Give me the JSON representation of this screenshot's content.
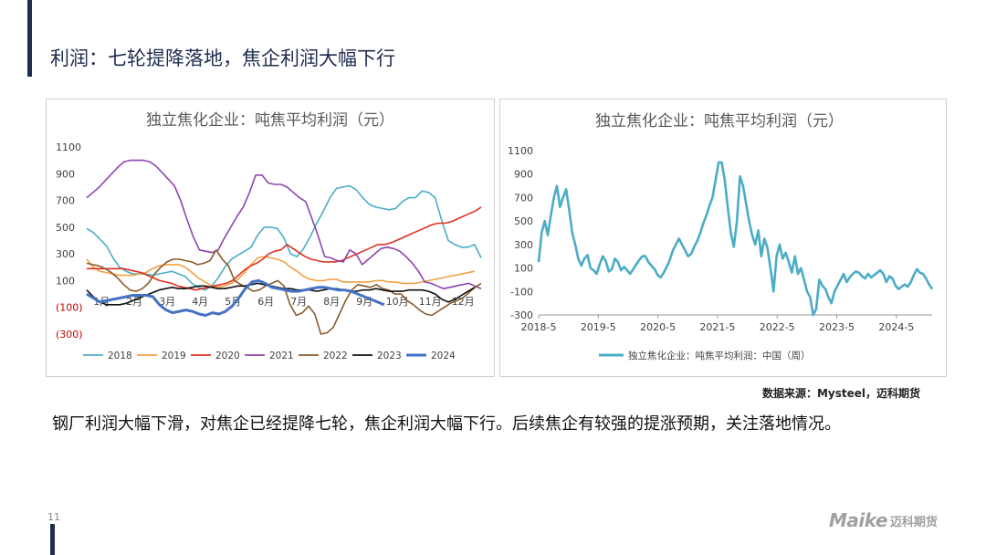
{
  "page": {
    "title": "利润：七轮提降落地，焦企利润大幅下行",
    "source": "数据来源：Mysteel，迈科期货",
    "summary": "钢厂利润大幅下滑，对焦企已经提降七轮，焦企利润大幅下行。后续焦企有较强的提涨预期，关注落地情况。",
    "page_number": "11",
    "logo_en": "Maike",
    "logo_cn": "迈科期货"
  },
  "colors": {
    "accent": "#1f2d4e",
    "s2018": "#4bacc6",
    "s2019": "#f0a040",
    "s2020": "#e03020",
    "s2021": "#8e44ad",
    "s2022": "#8b5a2b",
    "s2023": "#111111",
    "s2024": "#4472c4",
    "right_line": "#4bacc6"
  },
  "chart_data": [
    {
      "type": "line",
      "title": "独立焦化企业：吨焦平均利润（元）",
      "x_labels": [
        "1月",
        "2月",
        "3月",
        "4月",
        "5月",
        "6月",
        "7月",
        "8月",
        "9月",
        "10月",
        "11月",
        "12月"
      ],
      "y_ticks": [
        "1100",
        "900",
        "700",
        "500",
        "300",
        "100",
        "(100)",
        "(300)"
      ],
      "ylim": [
        -300,
        1100
      ],
      "legend_position": "bottom",
      "series": [
        {
          "name": "2018",
          "values": [
            490,
            460,
            410,
            360,
            270,
            200,
            170,
            150,
            150,
            150,
            140,
            150,
            160,
            170,
            150,
            130,
            80,
            50,
            30,
            60,
            120,
            200,
            260,
            290,
            320,
            350,
            440,
            500,
            500,
            490,
            420,
            300,
            280,
            340,
            430,
            530,
            620,
            720,
            790,
            800,
            810,
            780,
            720,
            670,
            650,
            640,
            630,
            640,
            690,
            720,
            720,
            770,
            760,
            720,
            550,
            400,
            370,
            350,
            350,
            370,
            270
          ]
        },
        {
          "name": "2019",
          "values": [
            260,
            200,
            170,
            160,
            150,
            140,
            140,
            140,
            150,
            160,
            190,
            210,
            220,
            220,
            220,
            200,
            160,
            120,
            90,
            60,
            50,
            60,
            80,
            110,
            160,
            220,
            270,
            280,
            270,
            260,
            240,
            200,
            170,
            130,
            110,
            100,
            100,
            110,
            110,
            90,
            90,
            90,
            90,
            90,
            100,
            100,
            90,
            90,
            80,
            80,
            80,
            90,
            100,
            110,
            120,
            130,
            140,
            150,
            160,
            170
          ]
        },
        {
          "name": "2020",
          "values": [
            190,
            190,
            190,
            190,
            190,
            190,
            190,
            180,
            170,
            160,
            140,
            120,
            100,
            90,
            80,
            60,
            50,
            40,
            30,
            40,
            50,
            60,
            70,
            80,
            100,
            140,
            180,
            210,
            230,
            260,
            300,
            320,
            330,
            370,
            340,
            310,
            280,
            260,
            250,
            240,
            240,
            240,
            250,
            270,
            290,
            310,
            330,
            350,
            370,
            370,
            380,
            400,
            420,
            440,
            460,
            480,
            500,
            520,
            530,
            530,
            540,
            560,
            580,
            600,
            620,
            650
          ]
        },
        {
          "name": "2021",
          "values": [
            720,
            760,
            800,
            850,
            900,
            950,
            990,
            1000,
            1000,
            1000,
            990,
            960,
            910,
            860,
            810,
            700,
            560,
            430,
            330,
            320,
            310,
            330,
            420,
            500,
            580,
            650,
            760,
            890,
            890,
            830,
            820,
            820,
            800,
            760,
            720,
            690,
            560,
            430,
            280,
            270,
            250,
            240,
            330,
            300,
            220,
            260,
            300,
            340,
            350,
            340,
            320,
            280,
            230,
            170,
            90,
            80,
            60,
            40,
            50,
            60,
            70,
            80,
            60,
            40
          ]
        },
        {
          "name": "2022",
          "values": [
            230,
            220,
            210,
            190,
            160,
            120,
            70,
            30,
            20,
            40,
            80,
            150,
            200,
            240,
            260,
            260,
            250,
            240,
            220,
            230,
            250,
            330,
            260,
            210,
            100,
            70,
            50,
            20,
            30,
            60,
            80,
            100,
            60,
            -80,
            -160,
            -140,
            -90,
            -150,
            -300,
            -290,
            -250,
            -150,
            -50,
            30,
            70,
            60,
            50,
            70,
            40,
            30,
            0,
            0,
            -50,
            -80,
            -120,
            -150,
            -160,
            -130,
            -100,
            -70,
            -50,
            -30,
            10,
            50,
            80
          ]
        },
        {
          "name": "2023",
          "values": [
            30,
            -20,
            -60,
            -80,
            -80,
            -80,
            -70,
            -50,
            -30,
            -10,
            10,
            30,
            40,
            50,
            40,
            40,
            50,
            60,
            60,
            50,
            40,
            40,
            50,
            60,
            60,
            70,
            80,
            70,
            60,
            50,
            40,
            40,
            30,
            30,
            30,
            20,
            30,
            40,
            40,
            30,
            20,
            20,
            30,
            30,
            40,
            30,
            20,
            20,
            20,
            30,
            30,
            30,
            20,
            0,
            -40,
            -60,
            -40,
            -10,
            20,
            50
          ]
        },
        {
          "name": "2024",
          "values": [
            0,
            -30,
            -60,
            -50,
            -40,
            -30,
            -20,
            -10,
            -10,
            -10,
            -20,
            -80,
            -120,
            -140,
            -130,
            -120,
            -130,
            -150,
            -160,
            -140,
            -150,
            -130,
            -90,
            -30,
            40,
            90,
            100,
            80,
            50,
            40,
            30,
            20,
            20,
            30,
            40,
            50,
            50,
            40,
            30,
            30,
            20,
            0,
            -20,
            -40,
            -60,
            -80
          ]
        }
      ]
    },
    {
      "type": "line",
      "title": "独立焦化企业：吨焦平均利润（元）",
      "x_labels": [
        "2018-5",
        "2019-5",
        "2020-5",
        "2021-5",
        "2022-5",
        "2023-5",
        "2024-5"
      ],
      "y_ticks": [
        "1100",
        "900",
        "700",
        "500",
        "300",
        "100",
        "-100",
        "-300"
      ],
      "ylim": [
        -300,
        1100
      ],
      "legend_position": "bottom",
      "series": [
        {
          "name": "独立焦化企业：吨焦平均利润：中国（周）",
          "values": [
            150,
            400,
            500,
            380,
            550,
            700,
            800,
            620,
            700,
            770,
            600,
            400,
            300,
            180,
            120,
            180,
            210,
            100,
            80,
            50,
            130,
            200,
            160,
            70,
            90,
            180,
            150,
            80,
            110,
            80,
            50,
            90,
            130,
            170,
            200,
            200,
            150,
            120,
            90,
            40,
            20,
            60,
            110,
            170,
            250,
            300,
            350,
            300,
            250,
            200,
            220,
            280,
            330,
            400,
            480,
            550,
            630,
            700,
            850,
            1000,
            1000,
            850,
            620,
            400,
            280,
            500,
            880,
            800,
            650,
            500,
            380,
            300,
            420,
            200,
            350,
            270,
            100,
            -100,
            200,
            300,
            180,
            230,
            150,
            60,
            200,
            50,
            100,
            0,
            -100,
            -150,
            -300,
            -250,
            0,
            -50,
            -80,
            -150,
            -200,
            -100,
            -50,
            0,
            50,
            -20,
            20,
            50,
            70,
            60,
            30,
            10,
            50,
            20,
            40,
            60,
            80,
            50,
            -20,
            30,
            10,
            -50,
            -80,
            -60,
            -40,
            -60,
            -20,
            40,
            90,
            60,
            50,
            10,
            -40,
            -80
          ]
        }
      ]
    }
  ]
}
